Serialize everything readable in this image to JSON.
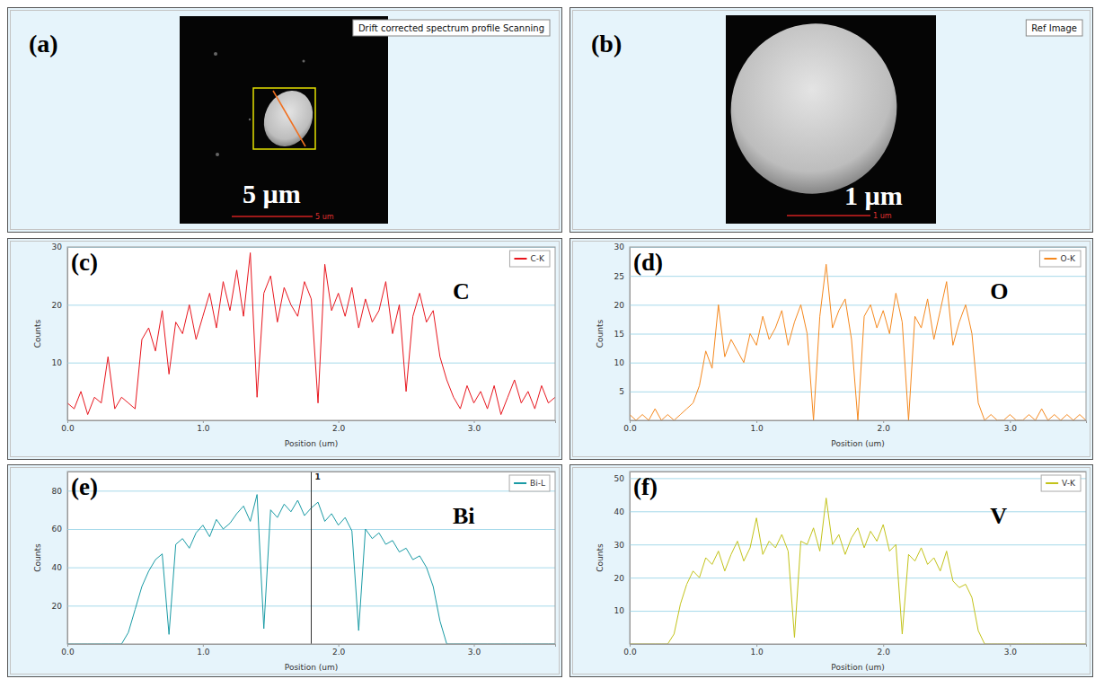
{
  "images": [
    {
      "panel": "(a)",
      "caption": "Drift corrected spectrum profile Scanning",
      "scale_label": "5 µm",
      "scale_bar_text": "5 um"
    },
    {
      "panel": "(b)",
      "caption": "Ref Image",
      "scale_label": "1 µm",
      "scale_bar_text": "1 um"
    }
  ],
  "chart_data": [
    {
      "type": "line",
      "panel": "(c)",
      "x_label": "Position (um)",
      "y_label": "Counts",
      "x": [
        0,
        0.05,
        0.1,
        0.15,
        0.2,
        0.25,
        0.3,
        0.35,
        0.4,
        0.45,
        0.5,
        0.55,
        0.6,
        0.65,
        0.7,
        0.75,
        0.8,
        0.85,
        0.9,
        0.95,
        1.0,
        1.05,
        1.1,
        1.15,
        1.2,
        1.25,
        1.3,
        1.35,
        1.4,
        1.45,
        1.5,
        1.55,
        1.6,
        1.65,
        1.7,
        1.75,
        1.8,
        1.85,
        1.9,
        1.95,
        2.0,
        2.05,
        2.1,
        2.15,
        2.2,
        2.25,
        2.3,
        2.35,
        2.4,
        2.45,
        2.5,
        2.55,
        2.6,
        2.65,
        2.7,
        2.75,
        2.8,
        2.85,
        2.9,
        2.95,
        3.0,
        3.05,
        3.1,
        3.15,
        3.2,
        3.25,
        3.3,
        3.35,
        3.4,
        3.45,
        3.5,
        3.55,
        3.6
      ],
      "series": [
        {
          "name": "C-K",
          "color": "#e8161e",
          "values": [
            3,
            2,
            5,
            1,
            4,
            3,
            11,
            2,
            4,
            3,
            2,
            14,
            16,
            12,
            19,
            8,
            17,
            15,
            20,
            14,
            18,
            22,
            16,
            24,
            19,
            26,
            18,
            29,
            4,
            22,
            25,
            17,
            23,
            20,
            18,
            24,
            21,
            3,
            27,
            19,
            22,
            18,
            23,
            16,
            21,
            17,
            19,
            24,
            15,
            20,
            5,
            18,
            22,
            17,
            19,
            11,
            7,
            4,
            2,
            6,
            3,
            5,
            2,
            6,
            1,
            4,
            7,
            3,
            5,
            2,
            6,
            3,
            4
          ]
        }
      ],
      "xlim": [
        0,
        3.6
      ],
      "xticks": [
        {
          "value": 0,
          "label": "0.0"
        },
        {
          "value": 1,
          "label": "1.0"
        },
        {
          "value": 2,
          "label": "2.0"
        },
        {
          "value": 3,
          "label": "3.0"
        }
      ],
      "ylim": [
        0,
        30
      ],
      "yticks": [
        10,
        20,
        30
      ],
      "grid": true,
      "legend": "top-right",
      "annotations": [
        {
          "text": "C"
        }
      ]
    },
    {
      "type": "line",
      "panel": "(d)",
      "x_label": "Position (um)",
      "y_label": "Counts",
      "x": [
        0,
        0.05,
        0.1,
        0.15,
        0.2,
        0.25,
        0.3,
        0.35,
        0.4,
        0.45,
        0.5,
        0.55,
        0.6,
        0.65,
        0.7,
        0.75,
        0.8,
        0.85,
        0.9,
        0.95,
        1.0,
        1.05,
        1.1,
        1.15,
        1.2,
        1.25,
        1.3,
        1.35,
        1.4,
        1.45,
        1.5,
        1.55,
        1.6,
        1.65,
        1.7,
        1.75,
        1.8,
        1.85,
        1.9,
        1.95,
        2.0,
        2.05,
        2.1,
        2.15,
        2.2,
        2.25,
        2.3,
        2.35,
        2.4,
        2.45,
        2.5,
        2.55,
        2.6,
        2.65,
        2.7,
        2.75,
        2.8,
        2.85,
        2.9,
        2.95,
        3.0,
        3.05,
        3.1,
        3.15,
        3.2,
        3.25,
        3.3,
        3.35,
        3.4,
        3.45,
        3.5,
        3.55,
        3.6
      ],
      "series": [
        {
          "name": "O-K",
          "color": "#f5891f",
          "values": [
            1,
            0,
            1,
            0,
            2,
            0,
            1,
            0,
            1,
            2,
            3,
            6,
            12,
            9,
            20,
            11,
            14,
            12,
            10,
            15,
            13,
            18,
            14,
            16,
            19,
            13,
            17,
            20,
            15,
            0,
            18,
            27,
            16,
            19,
            21,
            14,
            0,
            18,
            20,
            16,
            19,
            15,
            22,
            17,
            0,
            18,
            16,
            21,
            14,
            19,
            24,
            13,
            17,
            20,
            15,
            3,
            0,
            1,
            0,
            0,
            1,
            0,
            0,
            1,
            0,
            2,
            0,
            1,
            0,
            1,
            0,
            1,
            0
          ]
        }
      ],
      "xlim": [
        0,
        3.6
      ],
      "xticks": [
        {
          "value": 0,
          "label": "0.0"
        },
        {
          "value": 1,
          "label": "1.0"
        },
        {
          "value": 2,
          "label": "2.0"
        },
        {
          "value": 3,
          "label": "3.0"
        }
      ],
      "ylim": [
        0,
        30
      ],
      "yticks": [
        5,
        10,
        15,
        20,
        25,
        30
      ],
      "grid": true,
      "legend": "top-right",
      "annotations": [
        {
          "text": "O"
        }
      ]
    },
    {
      "type": "line",
      "panel": "(e)",
      "x_label": "Position (um)",
      "y_label": "Counts",
      "x": [
        0,
        0.05,
        0.1,
        0.15,
        0.2,
        0.25,
        0.3,
        0.35,
        0.4,
        0.45,
        0.5,
        0.55,
        0.6,
        0.65,
        0.7,
        0.75,
        0.8,
        0.85,
        0.9,
        0.95,
        1.0,
        1.05,
        1.1,
        1.15,
        1.2,
        1.25,
        1.3,
        1.35,
        1.4,
        1.45,
        1.5,
        1.55,
        1.6,
        1.65,
        1.7,
        1.75,
        1.8,
        1.85,
        1.9,
        1.95,
        2.0,
        2.05,
        2.1,
        2.15,
        2.2,
        2.25,
        2.3,
        2.35,
        2.4,
        2.45,
        2.5,
        2.55,
        2.6,
        2.65,
        2.7,
        2.75,
        2.8,
        2.85,
        2.9,
        2.95,
        3.0,
        3.05,
        3.1,
        3.15,
        3.2,
        3.25,
        3.3,
        3.35,
        3.4,
        3.45,
        3.5,
        3.55,
        3.6
      ],
      "series": [
        {
          "name": "Bi-L",
          "color": "#1a9ba5",
          "values": [
            0,
            0,
            0,
            0,
            0,
            0,
            0,
            0,
            0,
            6,
            18,
            30,
            38,
            44,
            47,
            5,
            52,
            55,
            50,
            58,
            62,
            56,
            65,
            60,
            63,
            68,
            72,
            64,
            78,
            8,
            70,
            66,
            73,
            69,
            75,
            67,
            71,
            74,
            64,
            68,
            62,
            66,
            59,
            7,
            60,
            55,
            58,
            52,
            54,
            48,
            50,
            44,
            46,
            40,
            30,
            12,
            0,
            0,
            0,
            0,
            0,
            0,
            0,
            0,
            0,
            0,
            0,
            0,
            0,
            0,
            0,
            0,
            0
          ]
        }
      ],
      "xlim": [
        0,
        3.6
      ],
      "xticks": [
        {
          "value": 0,
          "label": "0.0"
        },
        {
          "value": 1,
          "label": "1.0"
        },
        {
          "value": 2,
          "label": "2.0"
        },
        {
          "value": 3,
          "label": "3.0"
        }
      ],
      "ylim": [
        0,
        90
      ],
      "yticks": [
        20,
        40,
        60,
        80
      ],
      "grid": true,
      "legend": "top-right",
      "annotations": [
        {
          "text": "Bi"
        },
        {
          "x": 1.8,
          "text": "1"
        }
      ]
    },
    {
      "type": "line",
      "panel": "(f)",
      "x_label": "Position (um)",
      "y_label": "Counts",
      "x": [
        0,
        0.05,
        0.1,
        0.15,
        0.2,
        0.25,
        0.3,
        0.35,
        0.4,
        0.45,
        0.5,
        0.55,
        0.6,
        0.65,
        0.7,
        0.75,
        0.8,
        0.85,
        0.9,
        0.95,
        1.0,
        1.05,
        1.1,
        1.15,
        1.2,
        1.25,
        1.3,
        1.35,
        1.4,
        1.45,
        1.5,
        1.55,
        1.6,
        1.65,
        1.7,
        1.75,
        1.8,
        1.85,
        1.9,
        1.95,
        2.0,
        2.05,
        2.1,
        2.15,
        2.2,
        2.25,
        2.3,
        2.35,
        2.4,
        2.45,
        2.5,
        2.55,
        2.6,
        2.65,
        2.7,
        2.75,
        2.8,
        2.85,
        2.9,
        2.95,
        3.0,
        3.05,
        3.1,
        3.15,
        3.2,
        3.25,
        3.3,
        3.35,
        3.4,
        3.45,
        3.5,
        3.55,
        3.6
      ],
      "series": [
        {
          "name": "V-K",
          "color": "#c3c31a",
          "values": [
            0,
            0,
            0,
            0,
            0,
            0,
            0,
            3,
            12,
            18,
            22,
            20,
            26,
            24,
            28,
            22,
            27,
            31,
            25,
            29,
            38,
            27,
            31,
            29,
            33,
            28,
            2,
            31,
            30,
            35,
            28,
            44,
            30,
            33,
            27,
            32,
            35,
            29,
            34,
            31,
            36,
            28,
            30,
            3,
            27,
            25,
            29,
            24,
            26,
            22,
            28,
            19,
            17,
            18,
            14,
            4,
            0,
            0,
            0,
            0,
            0,
            0,
            0,
            0,
            0,
            0,
            0,
            0,
            0,
            0,
            0,
            0,
            0
          ]
        }
      ],
      "xlim": [
        0,
        3.6
      ],
      "xticks": [
        {
          "value": 0,
          "label": "0.0"
        },
        {
          "value": 1,
          "label": "1.0"
        },
        {
          "value": 2,
          "label": "2.0"
        },
        {
          "value": 3,
          "label": "3.0"
        }
      ],
      "ylim": [
        0,
        52
      ],
      "yticks": [
        10,
        20,
        30,
        40,
        50
      ],
      "grid": true,
      "legend": "top-right",
      "annotations": [
        {
          "text": "V"
        }
      ]
    }
  ]
}
